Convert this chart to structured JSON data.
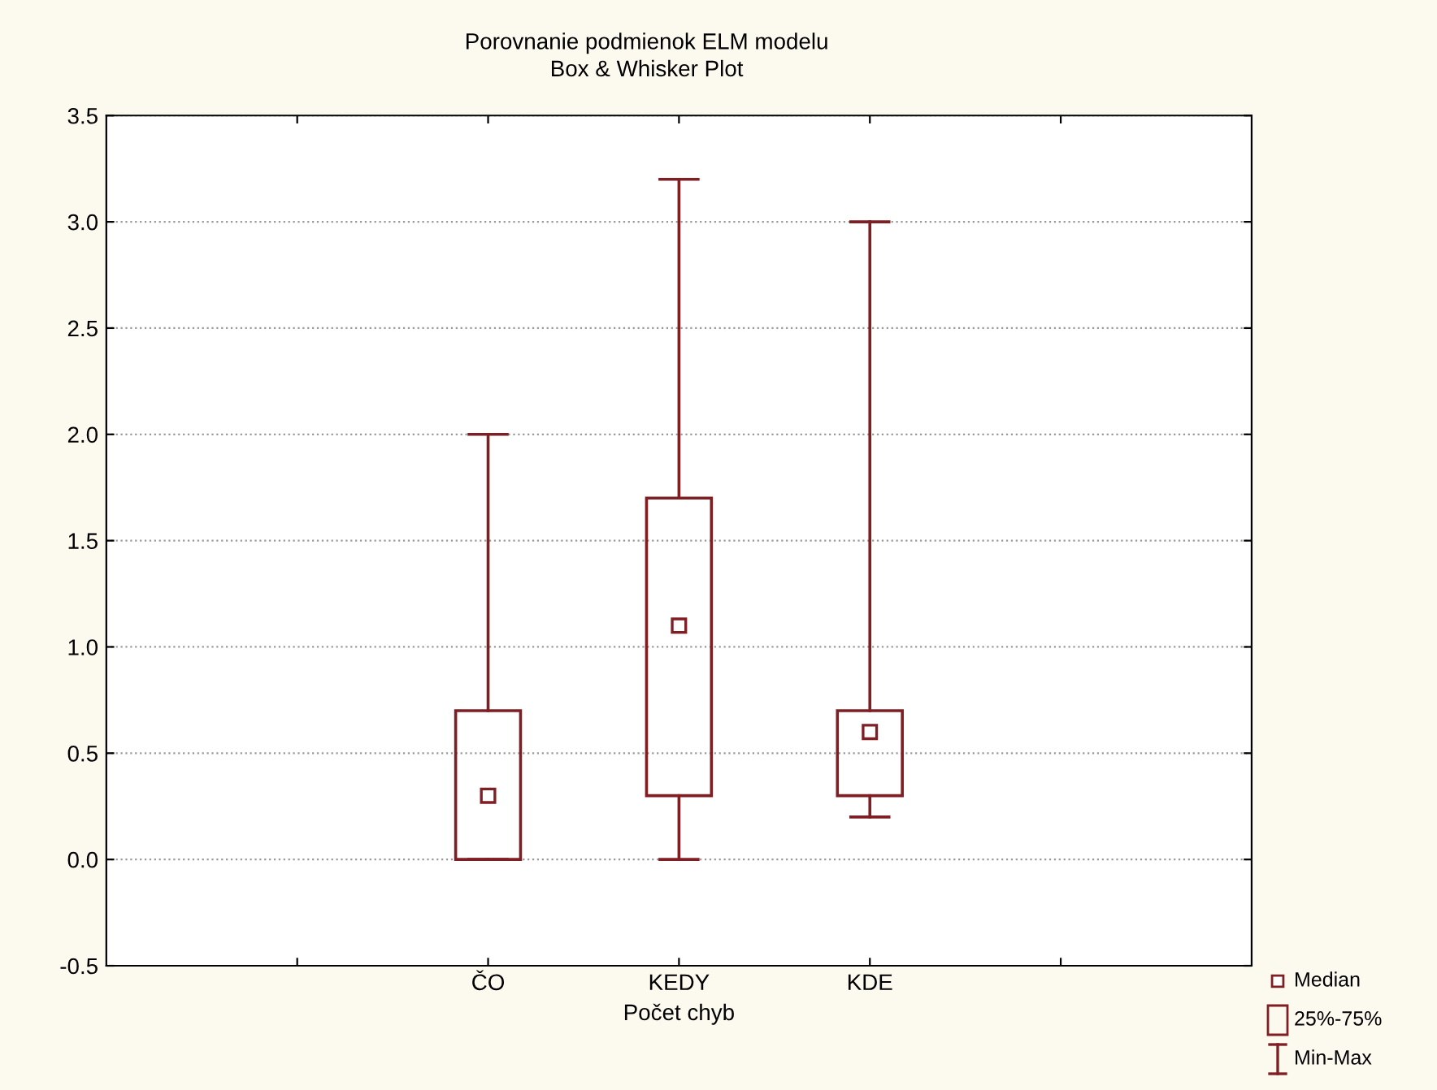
{
  "chart_data": {
    "type": "box",
    "title": "Porovnanie podmienok ELM modelu",
    "subtitle": "Box & Whisker Plot",
    "xlabel": "Počet chyb",
    "categories": [
      null,
      "ČO",
      "KEDY",
      "KDE",
      null
    ],
    "series": [
      {
        "color": "#7f1f24",
        "boxes": [
          null,
          {
            "low": 0,
            "q1": 0,
            "median": 0.3,
            "q3": 0.7,
            "high": 2.0
          },
          {
            "low": 0,
            "q1": 0.3,
            "median": 1.1,
            "q3": 1.7,
            "high": 3.2
          },
          {
            "low": 0.2,
            "q1": 0.3,
            "median": 0.6,
            "q3": 0.7,
            "high": 3.0
          },
          null
        ]
      }
    ],
    "ylim": [
      -0.5,
      3.5
    ],
    "yticks": [
      -0.5,
      {
        "value": 0,
        "label": "0.0"
      },
      0.5,
      {
        "value": 1,
        "label": "1.0"
      },
      1.5,
      {
        "value": 2,
        "label": "2.0"
      },
      2.5,
      {
        "value": 3,
        "label": "3.0"
      },
      3.5
    ],
    "grid": "y",
    "marker": "square",
    "annotations": [
      "Median",
      "25%-75%",
      "Min-Max"
    ]
  }
}
